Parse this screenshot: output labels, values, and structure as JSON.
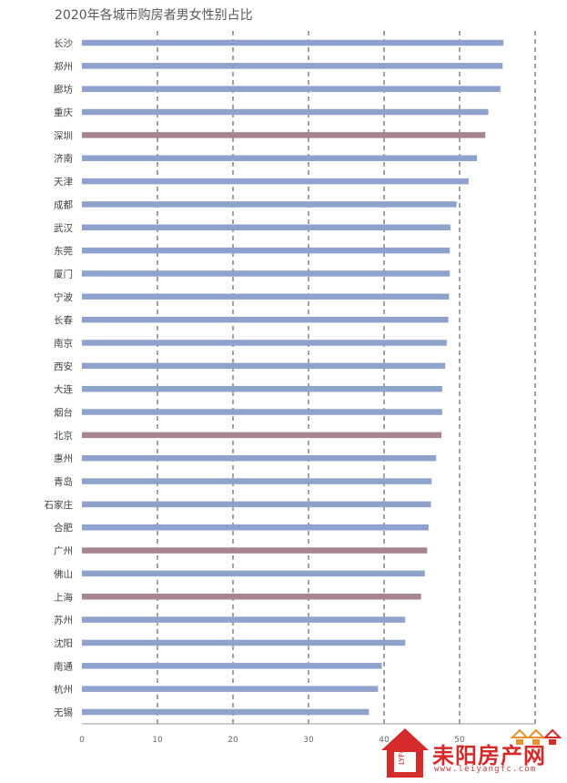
{
  "chart_data": {
    "type": "bar",
    "orientation": "horizontal",
    "title": "2020年各城市购房者男女性别占比",
    "categories": [
      "长沙",
      "郑州",
      "廊坊",
      "重庆",
      "深圳",
      "济南",
      "天津",
      "成都",
      "武汉",
      "东莞",
      "厦门",
      "宁波",
      "长春",
      "南京",
      "西安",
      "大连",
      "烟台",
      "北京",
      "惠州",
      "青岛",
      "石家庄",
      "合肥",
      "广州",
      "佛山",
      "上海",
      "苏州",
      "沈阳",
      "南通",
      "杭州",
      "无锡"
    ],
    "values": [
      55.8,
      55.7,
      55.4,
      53.8,
      53.4,
      52.3,
      51.2,
      49.6,
      48.8,
      48.7,
      48.7,
      48.6,
      48.5,
      48.3,
      48.1,
      47.7,
      47.7,
      47.6,
      46.9,
      46.3,
      46.2,
      45.9,
      45.7,
      45.4,
      44.9,
      42.8,
      42.8,
      39.7,
      39.2,
      38.0
    ],
    "highlighted": [
      "深圳",
      "北京",
      "广州",
      "上海"
    ],
    "xlim": [
      0,
      60
    ],
    "xticks": [
      0,
      10,
      20,
      30,
      40,
      50
    ],
    "grid": "vertical-dashed",
    "colors": {
      "normal": "#8ea2cc",
      "highlight": "#a8848e",
      "grid": "#333333",
      "axis": "#999999"
    }
  },
  "watermark": {
    "logo_text": "LYFC",
    "name": "耒阳房产网",
    "url": "www.leiyangfc.com",
    "colors": {
      "red": "#d42a2a",
      "orange": "#e8922a"
    }
  }
}
